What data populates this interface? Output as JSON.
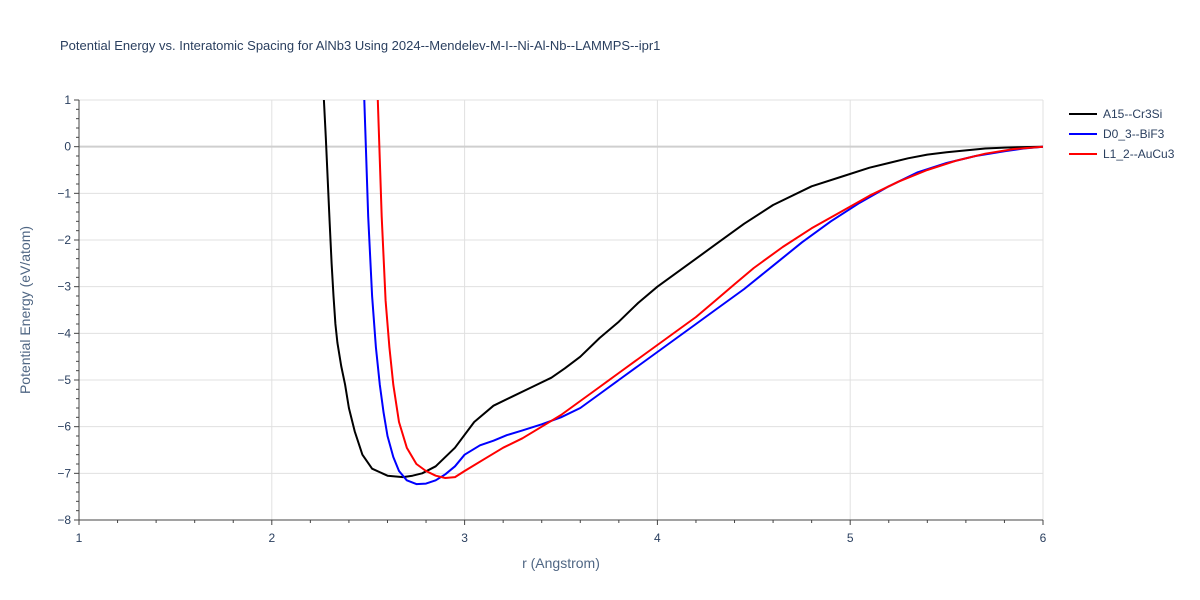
{
  "chart_data": {
    "type": "line",
    "title": "Potential Energy vs. Interatomic Spacing for AlNb3 Using 2024--Mendelev-M-I--Ni-Al-Nb--LAMMPS--ipr1",
    "xlabel": "r (Angstrom)",
    "ylabel": "Potential Energy (eV/atom)",
    "xlim": [
      1,
      6
    ],
    "ylim": [
      -8,
      1
    ],
    "xticks": [
      1,
      2,
      3,
      4,
      5,
      6
    ],
    "yticks": [
      1,
      0,
      -1,
      -2,
      -3,
      -4,
      -5,
      -6,
      -7,
      -8
    ],
    "grid": true,
    "legend_position": "top-right",
    "series": [
      {
        "name": "A15--Cr3Si",
        "color": "#000000",
        "x": [
          2.27,
          2.28,
          2.29,
          2.3,
          2.31,
          2.32,
          2.33,
          2.34,
          2.36,
          2.38,
          2.4,
          2.43,
          2.47,
          2.52,
          2.6,
          2.68,
          2.73,
          2.78,
          2.85,
          2.95,
          3.05,
          3.15,
          3.25,
          3.35,
          3.45,
          3.52,
          3.6,
          3.7,
          3.8,
          3.9,
          4.0,
          4.1,
          4.2,
          4.3,
          4.45,
          4.6,
          4.8,
          4.95,
          5.1,
          5.2,
          5.3,
          5.4,
          5.5,
          5.6,
          5.7,
          5.8,
          5.9,
          6.0
        ],
        "y": [
          1.0,
          0.2,
          -0.7,
          -1.6,
          -2.5,
          -3.2,
          -3.8,
          -4.2,
          -4.7,
          -5.1,
          -5.6,
          -6.1,
          -6.6,
          -6.9,
          -7.05,
          -7.08,
          -7.05,
          -7.0,
          -6.85,
          -6.45,
          -5.9,
          -5.55,
          -5.35,
          -5.15,
          -4.95,
          -4.75,
          -4.5,
          -4.1,
          -3.75,
          -3.35,
          -3.0,
          -2.7,
          -2.4,
          -2.1,
          -1.65,
          -1.25,
          -0.85,
          -0.65,
          -0.45,
          -0.35,
          -0.25,
          -0.17,
          -0.12,
          -0.08,
          -0.04,
          -0.02,
          -0.01,
          0.0
        ]
      },
      {
        "name": "D0_3--BiF3",
        "color": "#0000ff",
        "x": [
          2.48,
          2.5,
          2.52,
          2.54,
          2.56,
          2.58,
          2.6,
          2.63,
          2.66,
          2.7,
          2.75,
          2.8,
          2.85,
          2.9,
          2.95,
          3.0,
          3.08,
          3.15,
          3.22,
          3.3,
          3.4,
          3.5,
          3.6,
          3.7,
          3.8,
          3.9,
          4.0,
          4.1,
          4.2,
          4.3,
          4.45,
          4.6,
          4.75,
          4.9,
          5.05,
          5.2,
          5.35,
          5.5,
          5.65,
          5.8,
          5.9,
          6.0
        ],
        "y": [
          1.0,
          -1.5,
          -3.2,
          -4.3,
          -5.1,
          -5.7,
          -6.2,
          -6.65,
          -6.95,
          -7.15,
          -7.23,
          -7.22,
          -7.15,
          -7.02,
          -6.85,
          -6.6,
          -6.4,
          -6.3,
          -6.18,
          -6.08,
          -5.95,
          -5.8,
          -5.6,
          -5.3,
          -5.0,
          -4.7,
          -4.4,
          -4.1,
          -3.8,
          -3.5,
          -3.05,
          -2.55,
          -2.05,
          -1.6,
          -1.2,
          -0.85,
          -0.55,
          -0.35,
          -0.2,
          -0.1,
          -0.04,
          0.0
        ]
      },
      {
        "name": "L1_2--AuCu3",
        "color": "#ff0000",
        "x": [
          2.55,
          2.57,
          2.59,
          2.61,
          2.63,
          2.66,
          2.7,
          2.75,
          2.8,
          2.85,
          2.9,
          2.95,
          3.0,
          3.1,
          3.2,
          3.3,
          3.4,
          3.5,
          3.6,
          3.7,
          3.8,
          3.9,
          4.0,
          4.1,
          4.2,
          4.3,
          4.4,
          4.5,
          4.65,
          4.8,
          4.95,
          5.1,
          5.25,
          5.4,
          5.55,
          5.7,
          5.85,
          6.0
        ],
        "y": [
          1.0,
          -1.5,
          -3.3,
          -4.3,
          -5.1,
          -5.9,
          -6.45,
          -6.8,
          -6.95,
          -7.05,
          -7.1,
          -7.08,
          -6.95,
          -6.7,
          -6.45,
          -6.25,
          -6.0,
          -5.75,
          -5.45,
          -5.15,
          -4.85,
          -4.55,
          -4.25,
          -3.95,
          -3.65,
          -3.3,
          -2.95,
          -2.6,
          -2.15,
          -1.75,
          -1.4,
          -1.05,
          -0.75,
          -0.5,
          -0.3,
          -0.15,
          -0.05,
          0.0
        ]
      }
    ]
  }
}
